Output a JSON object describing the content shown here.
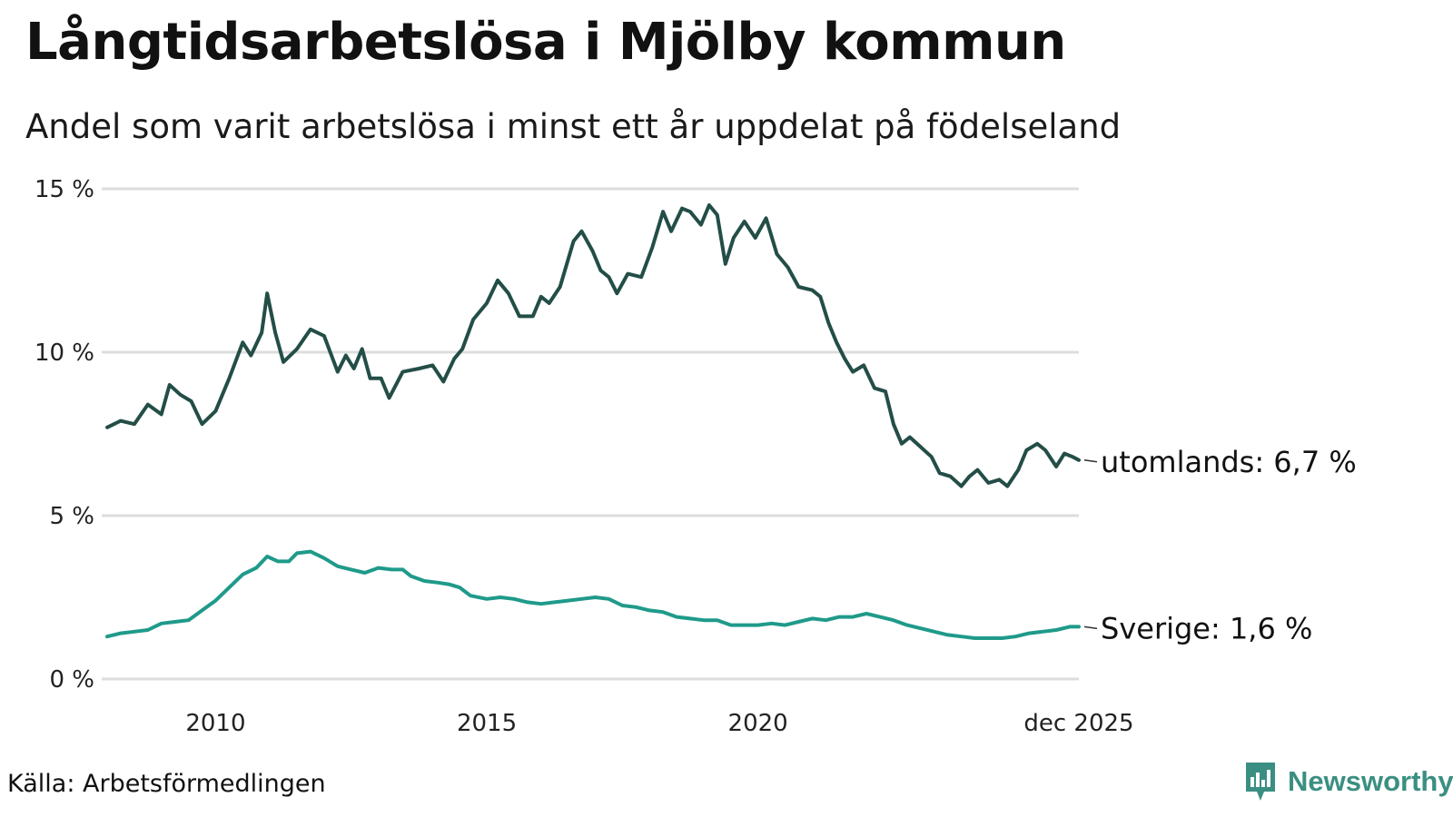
{
  "title": "Långtidsarbetslösa i Mjölby kommun",
  "subtitle": "Andel som varit arbetslösa i minst ett år uppdelat på födelseland",
  "source": "Källa: Arbetsförmedlingen",
  "brand": "Newsworthy",
  "colors": {
    "utomlands": "#234e47",
    "sverige": "#1f9a8a",
    "grid": "#dddddd",
    "brand": "#3a8f82"
  },
  "chart_data": {
    "type": "line",
    "title": "Långtidsarbetslösa i Mjölby kommun",
    "xlabel": "",
    "ylabel": "",
    "xlim": [
      2008.0,
      2025.917
    ],
    "ylim": [
      0,
      15
    ],
    "y_ticks": [
      {
        "value": 0,
        "label": "0 %"
      },
      {
        "value": 5,
        "label": "5 %"
      },
      {
        "value": 10,
        "label": "10 %"
      },
      {
        "value": 15,
        "label": "15 %"
      }
    ],
    "x_ticks": [
      {
        "value": 2010,
        "label": "2010"
      },
      {
        "value": 2015,
        "label": "2015"
      },
      {
        "value": 2020,
        "label": "2020"
      },
      {
        "value": 2025.917,
        "label": "dec 2025"
      }
    ],
    "series": [
      {
        "name": "utomlands",
        "end_label": "utomlands: 6,7 %",
        "color": "#234e47",
        "points": [
          [
            2008.0,
            7.7
          ],
          [
            2008.25,
            7.9
          ],
          [
            2008.5,
            7.8
          ],
          [
            2008.75,
            8.4
          ],
          [
            2009.0,
            8.1
          ],
          [
            2009.15,
            9.0
          ],
          [
            2009.35,
            8.7
          ],
          [
            2009.55,
            8.5
          ],
          [
            2009.75,
            7.8
          ],
          [
            2010.0,
            8.2
          ],
          [
            2010.25,
            9.2
          ],
          [
            2010.5,
            10.3
          ],
          [
            2010.65,
            9.9
          ],
          [
            2010.85,
            10.6
          ],
          [
            2010.95,
            11.8
          ],
          [
            2011.1,
            10.6
          ],
          [
            2011.25,
            9.7
          ],
          [
            2011.5,
            10.1
          ],
          [
            2011.75,
            10.7
          ],
          [
            2012.0,
            10.5
          ],
          [
            2012.25,
            9.4
          ],
          [
            2012.4,
            9.9
          ],
          [
            2012.55,
            9.5
          ],
          [
            2012.7,
            10.1
          ],
          [
            2012.85,
            9.2
          ],
          [
            2013.05,
            9.2
          ],
          [
            2013.2,
            8.6
          ],
          [
            2013.45,
            9.4
          ],
          [
            2013.75,
            9.5
          ],
          [
            2014.0,
            9.6
          ],
          [
            2014.2,
            9.1
          ],
          [
            2014.4,
            9.8
          ],
          [
            2014.55,
            10.1
          ],
          [
            2014.75,
            11.0
          ],
          [
            2015.0,
            11.5
          ],
          [
            2015.2,
            12.2
          ],
          [
            2015.4,
            11.8
          ],
          [
            2015.6,
            11.1
          ],
          [
            2015.85,
            11.1
          ],
          [
            2016.0,
            11.7
          ],
          [
            2016.15,
            11.5
          ],
          [
            2016.35,
            12.0
          ],
          [
            2016.6,
            13.4
          ],
          [
            2016.75,
            13.7
          ],
          [
            2016.95,
            13.1
          ],
          [
            2017.1,
            12.5
          ],
          [
            2017.25,
            12.3
          ],
          [
            2017.4,
            11.8
          ],
          [
            2017.6,
            12.4
          ],
          [
            2017.85,
            12.3
          ],
          [
            2018.05,
            13.2
          ],
          [
            2018.25,
            14.3
          ],
          [
            2018.4,
            13.7
          ],
          [
            2018.6,
            14.4
          ],
          [
            2018.75,
            14.3
          ],
          [
            2018.95,
            13.9
          ],
          [
            2019.1,
            14.5
          ],
          [
            2019.25,
            14.2
          ],
          [
            2019.4,
            12.7
          ],
          [
            2019.55,
            13.5
          ],
          [
            2019.75,
            14.0
          ],
          [
            2019.95,
            13.5
          ],
          [
            2020.15,
            14.1
          ],
          [
            2020.35,
            13.0
          ],
          [
            2020.55,
            12.6
          ],
          [
            2020.75,
            12.0
          ],
          [
            2021.0,
            11.9
          ],
          [
            2021.15,
            11.7
          ],
          [
            2021.3,
            10.9
          ],
          [
            2021.45,
            10.3
          ],
          [
            2021.6,
            9.8
          ],
          [
            2021.75,
            9.4
          ],
          [
            2021.95,
            9.6
          ],
          [
            2022.15,
            8.9
          ],
          [
            2022.35,
            8.8
          ],
          [
            2022.5,
            7.8
          ],
          [
            2022.65,
            7.2
          ],
          [
            2022.8,
            7.4
          ],
          [
            2023.0,
            7.1
          ],
          [
            2023.2,
            6.8
          ],
          [
            2023.35,
            6.3
          ],
          [
            2023.55,
            6.2
          ],
          [
            2023.75,
            5.9
          ],
          [
            2023.9,
            6.2
          ],
          [
            2024.05,
            6.4
          ],
          [
            2024.25,
            6.0
          ],
          [
            2024.45,
            6.1
          ],
          [
            2024.6,
            5.9
          ],
          [
            2024.8,
            6.4
          ],
          [
            2024.95,
            7.0
          ],
          [
            2025.15,
            7.2
          ],
          [
            2025.3,
            7.0
          ],
          [
            2025.5,
            6.5
          ],
          [
            2025.65,
            6.9
          ],
          [
            2025.8,
            6.8
          ],
          [
            2025.917,
            6.7
          ]
        ]
      },
      {
        "name": "Sverige",
        "end_label": "Sverige: 1,6 %",
        "color": "#1f9a8a",
        "points": [
          [
            2008.0,
            1.3
          ],
          [
            2008.25,
            1.4
          ],
          [
            2008.5,
            1.45
          ],
          [
            2008.75,
            1.5
          ],
          [
            2009.0,
            1.7
          ],
          [
            2009.25,
            1.75
          ],
          [
            2009.5,
            1.8
          ],
          [
            2009.75,
            2.1
          ],
          [
            2010.0,
            2.4
          ],
          [
            2010.25,
            2.8
          ],
          [
            2010.5,
            3.2
          ],
          [
            2010.75,
            3.4
          ],
          [
            2010.95,
            3.75
          ],
          [
            2011.15,
            3.6
          ],
          [
            2011.35,
            3.6
          ],
          [
            2011.5,
            3.85
          ],
          [
            2011.75,
            3.9
          ],
          [
            2012.0,
            3.7
          ],
          [
            2012.25,
            3.45
          ],
          [
            2012.5,
            3.35
          ],
          [
            2012.75,
            3.25
          ],
          [
            2013.0,
            3.4
          ],
          [
            2013.25,
            3.35
          ],
          [
            2013.45,
            3.35
          ],
          [
            2013.6,
            3.15
          ],
          [
            2013.85,
            3.0
          ],
          [
            2014.1,
            2.95
          ],
          [
            2014.3,
            2.9
          ],
          [
            2014.5,
            2.8
          ],
          [
            2014.7,
            2.55
          ],
          [
            2015.0,
            2.45
          ],
          [
            2015.25,
            2.5
          ],
          [
            2015.5,
            2.45
          ],
          [
            2015.75,
            2.35
          ],
          [
            2016.0,
            2.3
          ],
          [
            2016.25,
            2.35
          ],
          [
            2016.5,
            2.4
          ],
          [
            2016.75,
            2.45
          ],
          [
            2017.0,
            2.5
          ],
          [
            2017.25,
            2.45
          ],
          [
            2017.5,
            2.25
          ],
          [
            2017.75,
            2.2
          ],
          [
            2018.0,
            2.1
          ],
          [
            2018.25,
            2.05
          ],
          [
            2018.5,
            1.9
          ],
          [
            2018.75,
            1.85
          ],
          [
            2019.0,
            1.8
          ],
          [
            2019.25,
            1.8
          ],
          [
            2019.5,
            1.65
          ],
          [
            2019.75,
            1.65
          ],
          [
            2020.0,
            1.65
          ],
          [
            2020.25,
            1.7
          ],
          [
            2020.5,
            1.65
          ],
          [
            2020.75,
            1.75
          ],
          [
            2021.0,
            1.85
          ],
          [
            2021.25,
            1.8
          ],
          [
            2021.5,
            1.9
          ],
          [
            2021.75,
            1.9
          ],
          [
            2022.0,
            2.0
          ],
          [
            2022.25,
            1.9
          ],
          [
            2022.5,
            1.8
          ],
          [
            2022.75,
            1.65
          ],
          [
            2023.0,
            1.55
          ],
          [
            2023.25,
            1.45
          ],
          [
            2023.5,
            1.35
          ],
          [
            2023.75,
            1.3
          ],
          [
            2024.0,
            1.25
          ],
          [
            2024.25,
            1.25
          ],
          [
            2024.5,
            1.25
          ],
          [
            2024.75,
            1.3
          ],
          [
            2025.0,
            1.4
          ],
          [
            2025.25,
            1.45
          ],
          [
            2025.5,
            1.5
          ],
          [
            2025.75,
            1.6
          ],
          [
            2025.917,
            1.6
          ]
        ]
      }
    ]
  }
}
